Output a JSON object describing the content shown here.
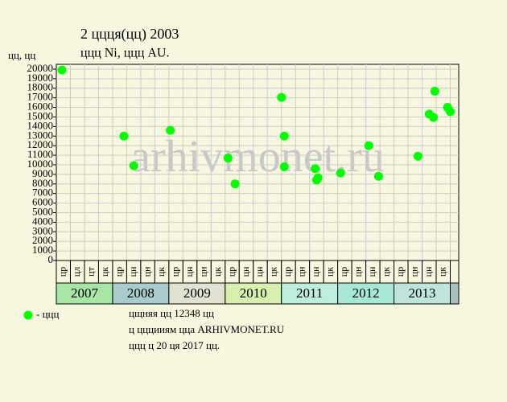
{
  "chart_data": {
    "type": "scatter",
    "title": "2 ццця(цц) 2003",
    "subtitle": "ццц Ni, ццц AU.",
    "y_label": "цц, цц",
    "watermark": "arhivmonet.ru",
    "categories": [
      "цр",
      "цл",
      "цт",
      "цк",
      "цр",
      "цн",
      "цн",
      "цк",
      "цр",
      "цн",
      "цн",
      "цк",
      "цр",
      "цн",
      "цн",
      "цк",
      "цр",
      "цн",
      "цн",
      "цк",
      "цр",
      "цн",
      "цн",
      "цк",
      "цр",
      "цн",
      "цн",
      "цк"
    ],
    "groups": [
      {
        "name": "2007",
        "color": "#a8e6a8"
      },
      {
        "name": "2008",
        "color": "#a9cccc"
      },
      {
        "name": "2009",
        "color": "#e2e2d2"
      },
      {
        "name": "2010",
        "color": "#d6f0b0"
      },
      {
        "name": "2011",
        "color": "#bdeedc"
      },
      {
        "name": "2012",
        "color": "#a8e6d6"
      },
      {
        "name": "2013",
        "color": "#bfe4dc"
      }
    ],
    "series": [
      {
        "name": "- ццц",
        "color": "#00ff00",
        "x": [
          0.4,
          4.8,
          5.5,
          8.1,
          12.2,
          12.7,
          16.0,
          16.2,
          16.2,
          18.4,
          18.6,
          18.5,
          20.2,
          22.2,
          22.9,
          25.7,
          26.5,
          26.8,
          26.9,
          27.8,
          28.0
        ],
        "values": [
          19900,
          13000,
          9900,
          13600,
          10700,
          8000,
          17050,
          13000,
          9800,
          9600,
          8650,
          8400,
          9150,
          12000,
          8800,
          10900,
          15300,
          14950,
          17700,
          16000,
          15550
        ]
      }
    ],
    "xlim": [
      0,
      28.6
    ],
    "ylim": [
      0,
      20500
    ],
    "yticks": [
      0,
      1000,
      2000,
      3000,
      4000,
      5000,
      6000,
      7000,
      8000,
      9000,
      10000,
      11000,
      12000,
      13000,
      14000,
      15000,
      16000,
      17000,
      18000,
      19000,
      20000
    ],
    "grid": true,
    "notes": [
      "цщняя цц 12348 цц",
      "ц цццииям цца ARHIVMONET.RU",
      "ццц ц 20 ця 2017 цц."
    ]
  }
}
